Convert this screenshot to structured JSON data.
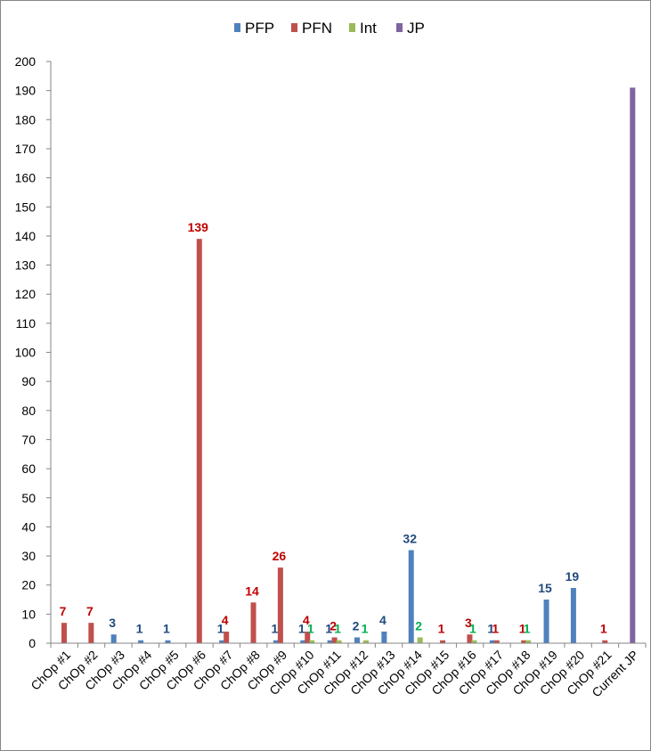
{
  "chart_data": {
    "type": "bar",
    "title": "",
    "xlabel": "",
    "ylabel": "",
    "ylim": [
      0,
      200
    ],
    "y_tick_step": 10,
    "legend_position": "top",
    "categories": [
      "ChOp #1",
      "ChOp #2",
      "ChOp #3",
      "ChOp #4",
      "ChOp #5",
      "ChOp #6",
      "ChOp #7",
      "ChOp #8",
      "ChOp #9",
      "ChOp #10",
      "ChOp #11",
      "ChOp #12",
      "ChOp #13",
      "ChOp #14",
      "ChOp #15",
      "ChOp #16",
      "ChOp #17",
      "ChOp #18",
      "ChOp #19",
      "ChOp #20",
      "ChOp #21",
      "Current JP"
    ],
    "series": [
      {
        "name": "PFP",
        "color": "#4F81BD",
        "label_color": "#1F497D",
        "values": [
          null,
          null,
          3,
          1,
          1,
          null,
          1,
          null,
          1,
          1,
          1,
          2,
          4,
          32,
          null,
          null,
          1,
          null,
          15,
          19,
          null,
          null
        ]
      },
      {
        "name": "PFN",
        "color": "#C0504D",
        "label_color": "#C00000",
        "values": [
          7,
          7,
          null,
          null,
          null,
          139,
          4,
          14,
          26,
          4,
          2,
          null,
          null,
          null,
          1,
          3,
          1,
          1,
          null,
          null,
          1,
          null
        ]
      },
      {
        "name": "Int",
        "color": "#9BBB59",
        "label_color": "#00B050",
        "values": [
          null,
          null,
          null,
          null,
          null,
          null,
          null,
          null,
          null,
          1,
          1,
          1,
          null,
          2,
          null,
          1,
          null,
          1,
          null,
          null,
          null,
          null
        ]
      },
      {
        "name": "JP",
        "color": "#8064A2",
        "label_color": "#8064A2",
        "show_labels": false,
        "values": [
          null,
          null,
          null,
          null,
          null,
          null,
          null,
          null,
          null,
          null,
          null,
          null,
          null,
          null,
          null,
          null,
          null,
          null,
          null,
          null,
          null,
          191
        ]
      }
    ]
  }
}
